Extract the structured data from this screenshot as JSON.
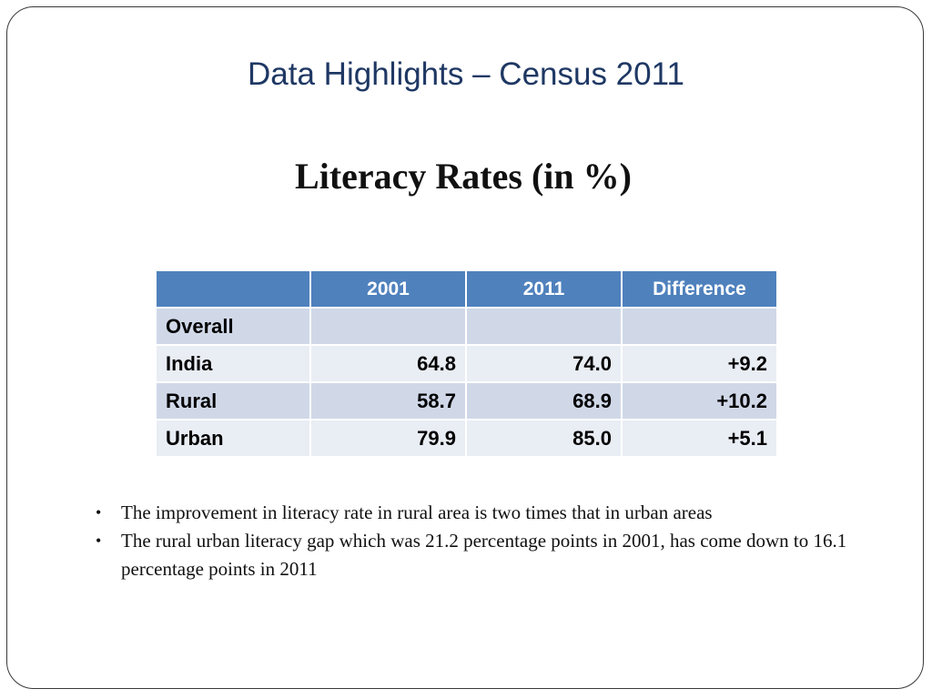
{
  "slide": {
    "title": "Data Highlights – Census 2011",
    "subtitle": "Literacy Rates (in %)"
  },
  "table": {
    "headers": [
      "",
      "2001",
      "2011",
      "Difference"
    ],
    "rows": [
      {
        "label": "Overall",
        "y2001": "",
        "y2011": "",
        "difference": ""
      },
      {
        "label": "India",
        "y2001": "64.8",
        "y2011": "74.0",
        "difference": "+9.2"
      },
      {
        "label": "Rural",
        "y2001": "58.7",
        "y2011": "68.9",
        "difference": "+10.2"
      },
      {
        "label": "Urban",
        "y2001": "79.9",
        "y2011": "85.0",
        "difference": "+5.1"
      }
    ]
  },
  "bullets": [
    "The improvement in literacy rate in rural area is two times that in urban areas",
    "The rural urban literacy gap which was 21.2 percentage points in 2001, has come down to 16.1 percentage points in 2011"
  ],
  "colors": {
    "title": "#1f3864",
    "header_fill": "#4f81bd",
    "row_band_dark": "#d0d8e8",
    "row_band_light": "#e9edf4"
  }
}
